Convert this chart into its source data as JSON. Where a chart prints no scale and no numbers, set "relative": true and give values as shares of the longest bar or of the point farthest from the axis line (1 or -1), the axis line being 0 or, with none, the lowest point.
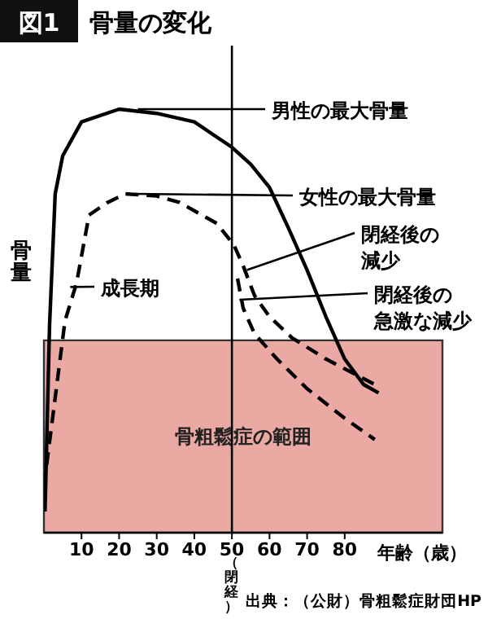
{
  "chart_data": {
    "type": "line",
    "title": "図1 骨量の変化",
    "ylabel": "骨量",
    "xlabel": "年齢（歳）",
    "relative": true,
    "xlim": [
      0,
      106
    ],
    "xticks": [
      10,
      20,
      30,
      40,
      50,
      60,
      70,
      80
    ],
    "series": [
      {
        "color": "#000000",
        "line_style": "solid",
        "x": [
          0.3,
          1.5,
          3,
          5,
          10,
          20,
          30,
          40,
          50,
          55,
          60,
          65,
          70,
          75,
          80,
          85,
          89
        ],
        "values": [
          0.05,
          0.49,
          0.8,
          0.89,
          0.97,
          1.0,
          0.99,
          0.97,
          0.91,
          0.87,
          0.815,
          0.72,
          0.62,
          0.51,
          0.41,
          0.35,
          0.33
        ]
      },
      {
        "color": "#000000",
        "line_style": "dashed",
        "x": [
          0,
          5.6,
          8.7,
          12,
          17,
          21.7,
          30,
          36,
          46,
          50.5,
          53,
          56,
          60,
          66,
          75,
          88
        ],
        "values": [
          0.11,
          0.5,
          0.59,
          0.75,
          0.78,
          0.8,
          0.795,
          0.78,
          0.73,
          0.68,
          0.63,
          0.56,
          0.51,
          0.46,
          0.41,
          0.35
        ]
      },
      {
        "color": "#000000",
        "line_style": "dashed",
        "x": [
          51.5,
          53,
          56,
          62,
          70,
          80,
          88
        ],
        "values": [
          0.6,
          0.53,
          0.47,
          0.41,
          0.34,
          0.27,
          0.22
        ]
      }
    ],
    "ref_lines": [
      {
        "axis": "x",
        "value": 50,
        "label": "（閉経）",
        "color": "#000000"
      }
    ],
    "bands": [
      {
        "axis": "y",
        "from": 0,
        "to": 0.454,
        "label": "骨粗鬆症の範囲",
        "color": "#eba9a3"
      }
    ],
    "annotations": [
      {
        "text": "男性の最大骨量",
        "x": 25,
        "y": 1.0
      },
      {
        "text": "女性の最大骨量",
        "x": 24,
        "y": 0.8
      },
      {
        "text": "閉経後の減少",
        "x": 54,
        "y": 0.62
      },
      {
        "text": "閉経後の急激な減少",
        "x": 52,
        "y": 0.55
      },
      {
        "text": "成長期",
        "x": 7,
        "y": 0.58
      },
      "出典：（公財）骨粗鬆症財団HP"
    ]
  }
}
